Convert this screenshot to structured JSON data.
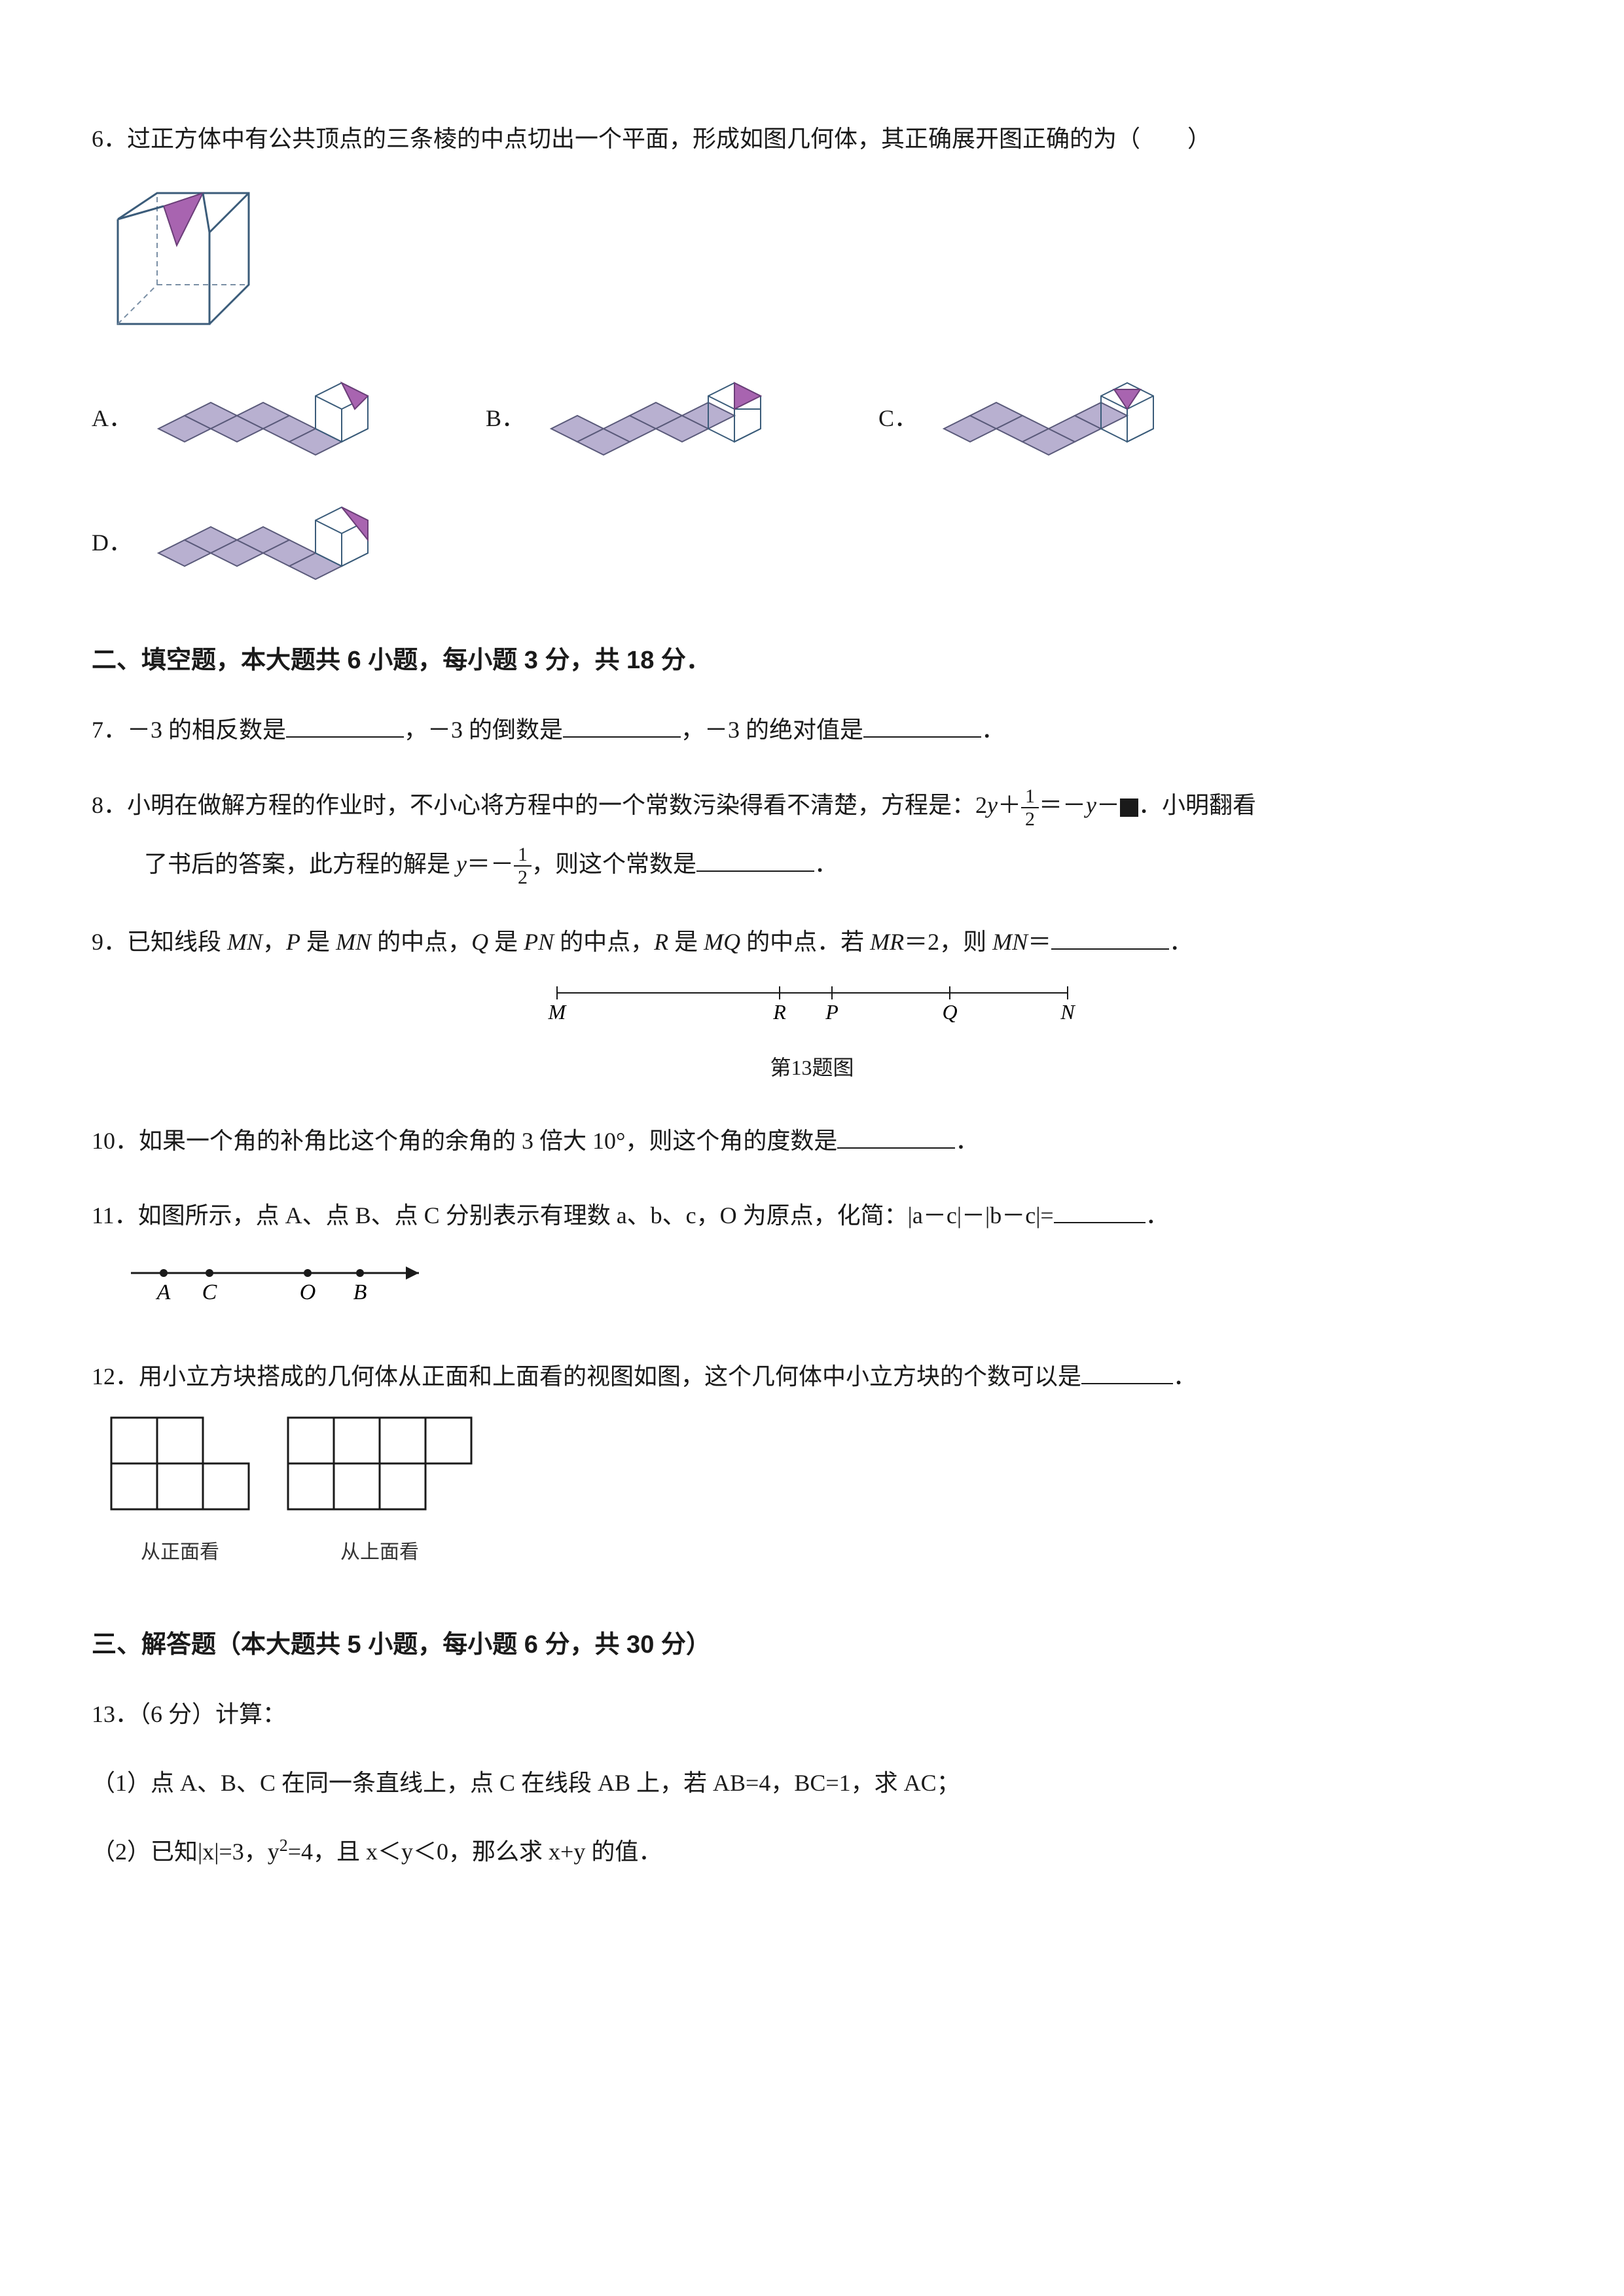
{
  "q6": {
    "num": "6．",
    "text": "过正方体中有公共顶点的三条棱的中点切出一个平面，形成如图几何体，其正确展开图正确的为（　　）",
    "options": {
      "A": "A．",
      "B": "B．",
      "C": "C．",
      "D": "D．"
    },
    "cube_colors": {
      "face": "#a864b0",
      "edge": "#3b5c7a",
      "dash": "#7a8fa5",
      "net_fill": "#b8b0d0",
      "net_stroke": "#5a5a7a"
    }
  },
  "section2": "二、填空题，本大题共 6 小题，每小题 3 分，共 18 分．",
  "q7": {
    "num": "7．",
    "a": "－3 的相反数是",
    "b": "，－3 的倒数是",
    "c": "，－3 的绝对值是",
    "d": "．"
  },
  "q8": {
    "num": "8．",
    "a": "小明在做解方程的作业时，不小心将方程中的一个常数污染得看不清楚，方程是：2",
    "y1": "y",
    "plus": "＋",
    "eq": "＝－",
    "y2": "y",
    "minus": "－",
    "b": "．小明翻看",
    "c": "了书后的答案，此方程的解是 ",
    "y3": "y",
    "eq2": "＝－",
    "d": "，则这个常数是",
    "e": "．",
    "frac1_num": "1",
    "frac1_den": "2",
    "frac2_num": "1",
    "frac2_den": "2"
  },
  "q9": {
    "num": "9．",
    "a": "已知线段 ",
    "mn1": "MN",
    "b": "，",
    "p": "P",
    "c": " 是 ",
    "mn2": "MN",
    "d": " 的中点，",
    "q": "Q",
    "e": " 是 ",
    "pn": "PN",
    "f": " 的中点，",
    "r": "R",
    "g": " 是 ",
    "mq": "MQ",
    "h": " 的中点．若 ",
    "mr": "MR",
    "i": "＝2，则 ",
    "mn3": "MN",
    "j": "＝",
    "k": "．",
    "line_labels": {
      "M": "M",
      "R": "R",
      "P": "P",
      "Q": "Q",
      "N": "N"
    },
    "caption": "第13题图"
  },
  "q10": {
    "num": "10．",
    "text": "如果一个角的补角比这个角的余角的 3 倍大 10°，则这个角的度数是",
    "end": "．"
  },
  "q11": {
    "num": "11．",
    "text": "如图所示，点 A、点 B、点 C 分别表示有理数 a、b、c，O 为原点，化简：|a－c|－|b－c|=",
    "end": "．",
    "labels": {
      "A": "A",
      "C": "C",
      "O": "O",
      "B": "B"
    }
  },
  "q12": {
    "num": "12．",
    "text": "用小立方块搭成的几何体从正面和上面看的视图如图，这个几何体中小立方块的个数可以是",
    "end": "．",
    "caption_front": "从正面看",
    "caption_top": "从上面看",
    "front_grid": [
      [
        1,
        1,
        0
      ],
      [
        1,
        1,
        1
      ]
    ],
    "top_grid": [
      [
        1,
        1,
        1,
        1
      ],
      [
        1,
        1,
        1,
        0
      ]
    ],
    "cell_size": 70,
    "stroke": "#1a1a1a"
  },
  "section3": "三、解答题（本大题共 5 小题，每小题 6 分，共 30 分）",
  "q13": {
    "num": "13．",
    "head": "（6 分）计算：",
    "p1": "（1）点 A、B、C 在同一条直线上，点 C 在线段 AB 上，若 AB=4，BC=1，求 AC；",
    "p2a": "（2）已知|x|=3，y",
    "p2sup": "2",
    "p2b": "=4，且 x＜y＜0，那么求 x+y 的值．"
  }
}
